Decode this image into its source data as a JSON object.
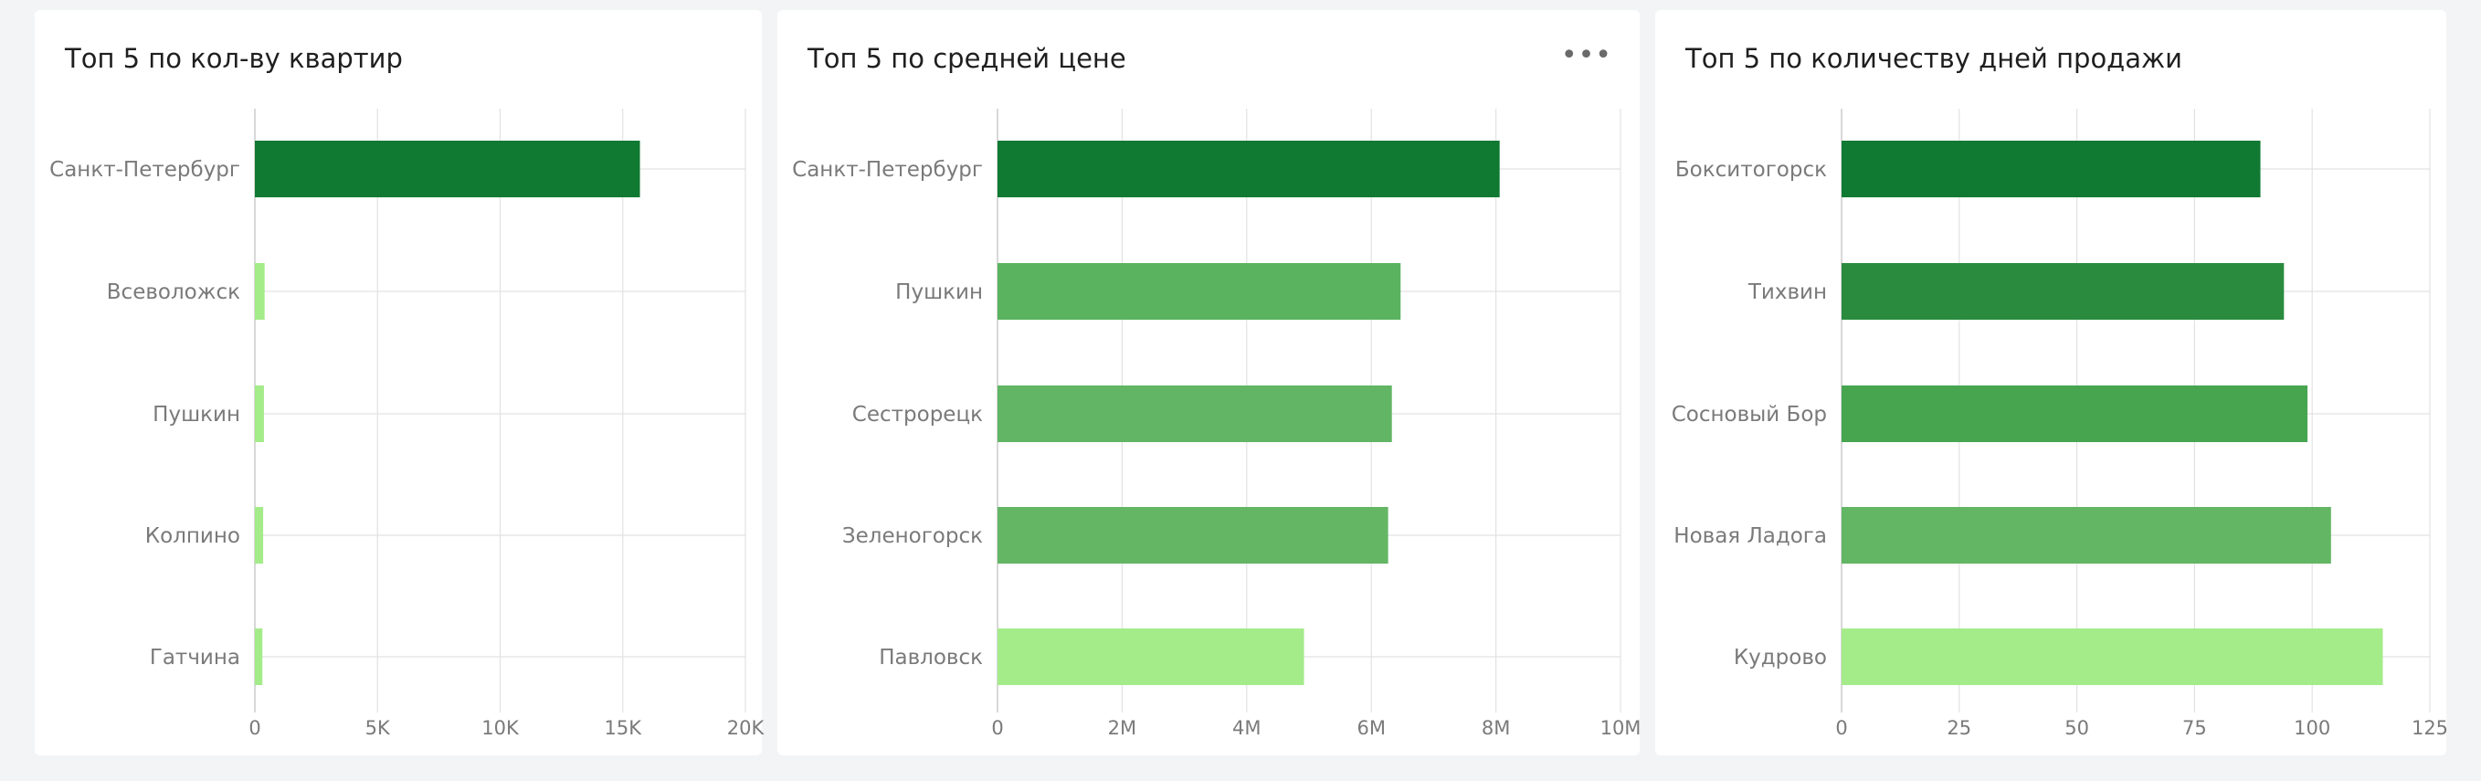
{
  "panels": [
    {
      "title": "Топ 5 по кол-ву квартир",
      "has_menu": false,
      "menu_icon": ""
    },
    {
      "title": "Топ 5 по средней цене",
      "has_menu": true,
      "menu_icon": "•••"
    },
    {
      "title": "Топ 5 по количеству дней продажи",
      "has_menu": false,
      "menu_icon": ""
    }
  ],
  "chart_data": [
    {
      "type": "bar",
      "orientation": "horizontal",
      "title": "Топ 5 по кол-ву квартир",
      "categories": [
        "Санкт-Петербург",
        "Всеволожск",
        "Пушкин",
        "Колпино",
        "Гатчина"
      ],
      "values": [
        15700,
        398,
        369,
        338,
        307
      ],
      "colors": [
        "#107a32",
        "#a4eb8a",
        "#a4eb8a",
        "#a4eb8a",
        "#a4eb8a"
      ],
      "xlim": [
        0,
        20000
      ],
      "xticks": [
        0,
        5000,
        10000,
        15000,
        20000
      ],
      "xtick_labels": [
        "0",
        "5K",
        "10K",
        "15K",
        "20K"
      ],
      "grid": true
    },
    {
      "type": "bar",
      "orientation": "horizontal",
      "title": "Топ 5 по средней цене",
      "categories": [
        "Санкт-Петербург",
        "Пушкин",
        "Сестрорецк",
        "Зеленогорск",
        "Павловск"
      ],
      "values": [
        8060000,
        6470000,
        6330000,
        6270000,
        4920000
      ],
      "colors": [
        "#107a32",
        "#5ab35f",
        "#61b564",
        "#64b665",
        "#a4eb8a"
      ],
      "xlim": [
        0,
        10000000
      ],
      "xticks": [
        0,
        2000000,
        4000000,
        6000000,
        8000000,
        10000000
      ],
      "xtick_labels": [
        "0",
        "2M",
        "4M",
        "6M",
        "8M",
        "10M"
      ],
      "grid": true
    },
    {
      "type": "bar",
      "orientation": "horizontal",
      "title": "Топ 5 по количеству дней продажи",
      "categories": [
        "Бокситогорск",
        "Тихвин",
        "Сосновый Бор",
        "Новая Ладога",
        "Кудрово"
      ],
      "values": [
        89,
        94,
        99,
        104,
        115
      ],
      "colors": [
        "#107a32",
        "#2a8b3f",
        "#47a550",
        "#63b664",
        "#a4eb8a"
      ],
      "xlim": [
        0,
        125
      ],
      "xticks": [
        0,
        25,
        50,
        75,
        100,
        125
      ],
      "xtick_labels": [
        "0",
        "25",
        "50",
        "75",
        "100",
        "125"
      ],
      "grid": true
    }
  ]
}
